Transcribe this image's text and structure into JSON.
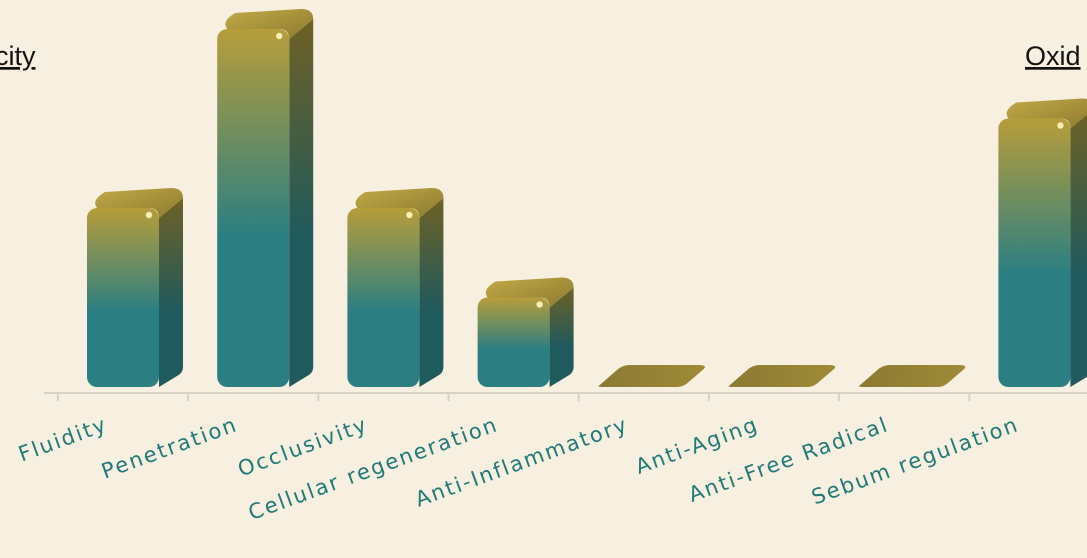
{
  "corner_labels": {
    "left": "city",
    "right": "Oxid"
  },
  "chart_data": {
    "type": "bar",
    "categories": [
      "Fluidity",
      "Penetration",
      "Occlusivity",
      "Cellular regeneration",
      "Anti-Inflammatory",
      "Anti-Aging",
      "Anti-Free Radical",
      "Sebum regulation"
    ],
    "values": [
      2,
      4,
      2,
      1,
      0,
      0,
      0,
      3
    ],
    "ylim": [
      0,
      4
    ],
    "grid": false,
    "colors": {
      "top": "#b79d3a",
      "bottom": "#2b7f82",
      "side_dark": "#1f5a5d",
      "baseline": "#d8d1c5"
    }
  }
}
